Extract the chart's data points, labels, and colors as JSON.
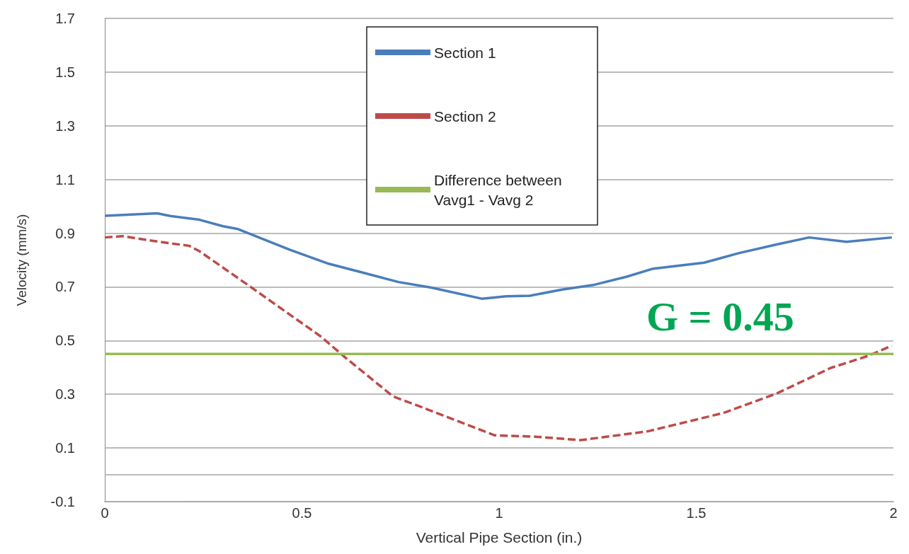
{
  "chart_data": {
    "type": "line",
    "xlabel": "Vertical Pipe Section (in.)",
    "ylabel": "Velocity (mm/s)",
    "xlim": [
      0,
      2
    ],
    "xticks": [
      0,
      0.5,
      1,
      1.5,
      2
    ],
    "ylim": [
      -0.1,
      1.7
    ],
    "yticks": [
      -0.1,
      0.1,
      0.3,
      0.5,
      0.7,
      0.9,
      1.1,
      1.3,
      1.5,
      1.7
    ],
    "grid": "y",
    "legend": "top",
    "marker": "none",
    "ref_lines": [
      {
        "axis": "y",
        "value": 0,
        "color": "#a6a6a6"
      }
    ],
    "annotations": [
      "G = 0.45"
    ],
    "series": [
      {
        "name": "Section 1",
        "color": "#4a7ebb",
        "line_style": "solid",
        "x": [
          0,
          0.133,
          0.166,
          0.24,
          0.3,
          0.336,
          0.418,
          0.47,
          0.568,
          0.642,
          0.745,
          0.826,
          0.956,
          1.018,
          1.078,
          1.16,
          1.242,
          1.324,
          1.391,
          1.52,
          1.609,
          1.704,
          1.786,
          1.881,
          1.996
        ],
        "values": [
          0.965,
          0.974,
          0.964,
          0.95,
          0.926,
          0.916,
          0.868,
          0.838,
          0.786,
          0.758,
          0.718,
          0.698,
          0.656,
          0.665,
          0.667,
          0.69,
          0.708,
          0.738,
          0.768,
          0.79,
          0.826,
          0.858,
          0.884,
          0.868,
          0.884
        ]
      },
      {
        "name": "Section 2",
        "color": "#be4b48",
        "line_style": "dashed",
        "x": [
          0,
          0.044,
          0.138,
          0.214,
          0.24,
          0.363,
          0.547,
          0.609,
          0.731,
          0.8,
          0.989,
          1.092,
          1.207,
          1.377,
          1.568,
          1.704,
          1.841,
          1.936,
          1.996
        ],
        "values": [
          0.884,
          0.889,
          0.868,
          0.853,
          0.833,
          0.707,
          0.516,
          0.438,
          0.292,
          0.254,
          0.147,
          0.142,
          0.129,
          0.162,
          0.23,
          0.303,
          0.398,
          0.443,
          0.481
        ]
      },
      {
        "name": "Difference between Vavg1 - Vavg 2",
        "color": "#98b954",
        "line_style": "solid",
        "x": [
          0,
          2
        ],
        "values": [
          0.45,
          0.45
        ]
      }
    ]
  }
}
